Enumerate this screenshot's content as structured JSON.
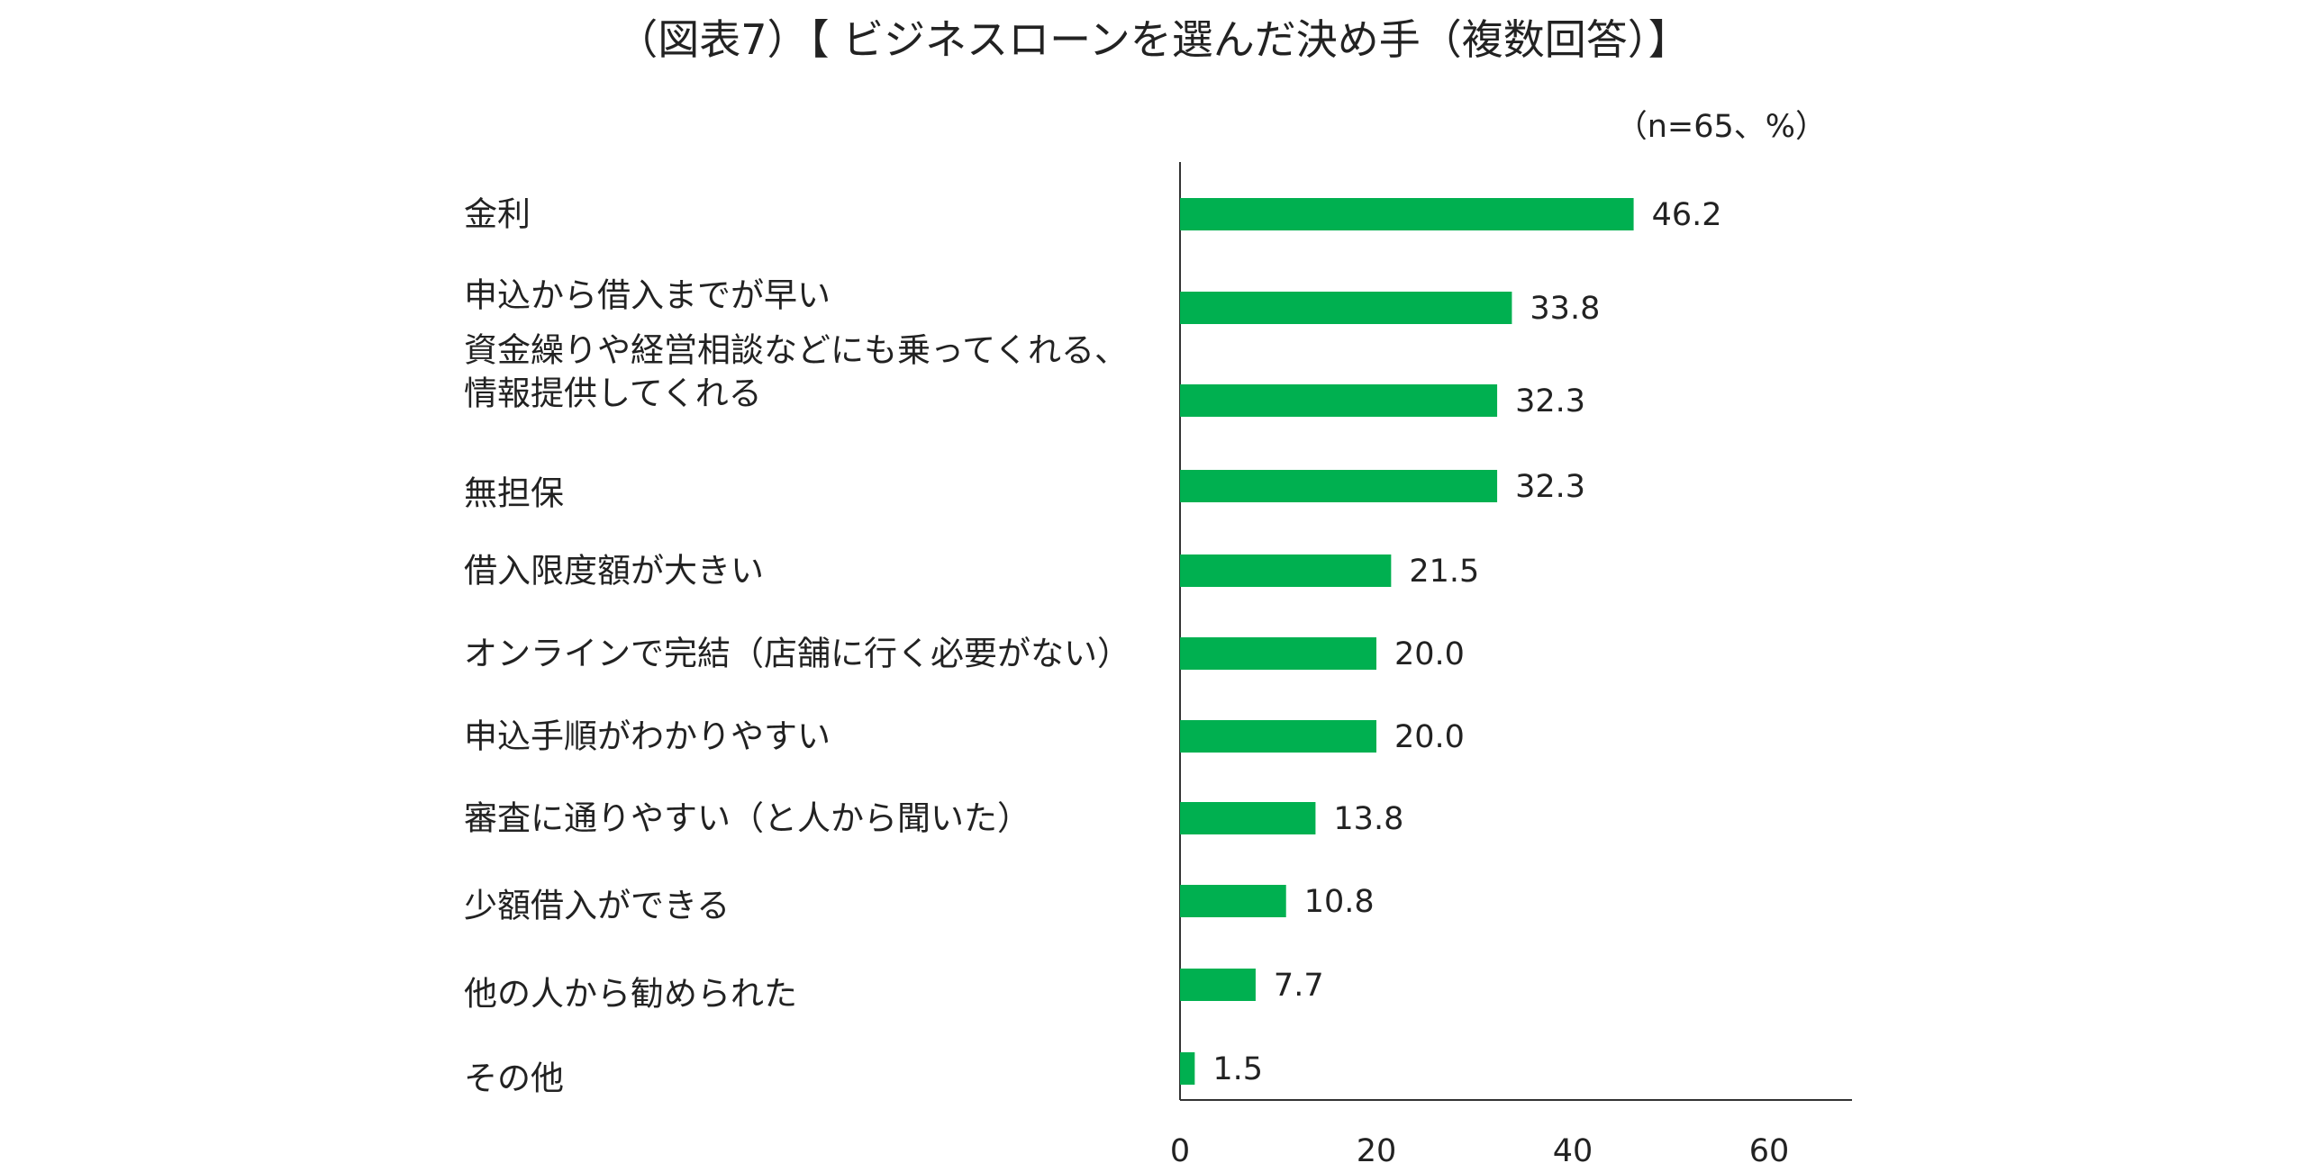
{
  "chart_data": {
    "type": "bar",
    "orientation": "horizontal",
    "title": "（図表7）【 ビジネスローンを選んだ決め手（複数回答）】",
    "note": "（n=65、%）",
    "categories": [
      [
        "金利"
      ],
      [
        "申込から借入までが早い"
      ],
      [
        "資金繰りや経営相談などにも乗ってくれる、",
        "情報提供してくれる"
      ],
      [
        "無担保"
      ],
      [
        "借入限度額が大きい"
      ],
      [
        "オンラインで完結（店舗に行く必要がない）"
      ],
      [
        "申込手順がわかりやすい"
      ],
      [
        "審査に通りやすい（と人から聞いた）"
      ],
      [
        "少額借入ができる"
      ],
      [
        "他の人から勧められた"
      ],
      [
        "その他"
      ]
    ],
    "values": [
      46.2,
      33.8,
      32.3,
      32.3,
      21.5,
      20.0,
      20.0,
      13.8,
      10.8,
      7.7,
      1.5
    ],
    "value_labels": [
      "46.2",
      "33.8",
      "32.3",
      "32.3",
      "21.5",
      "20.0",
      "20.0",
      "13.8",
      "10.8",
      "7.7",
      "1.5"
    ],
    "xlim": [
      0,
      68
    ],
    "xticks": [
      0,
      20,
      40,
      60
    ],
    "xtick_labels": [
      "0",
      "20",
      "40",
      "60"
    ],
    "grid": false,
    "bar_color": "#00b050",
    "axis_color": "#333333"
  }
}
